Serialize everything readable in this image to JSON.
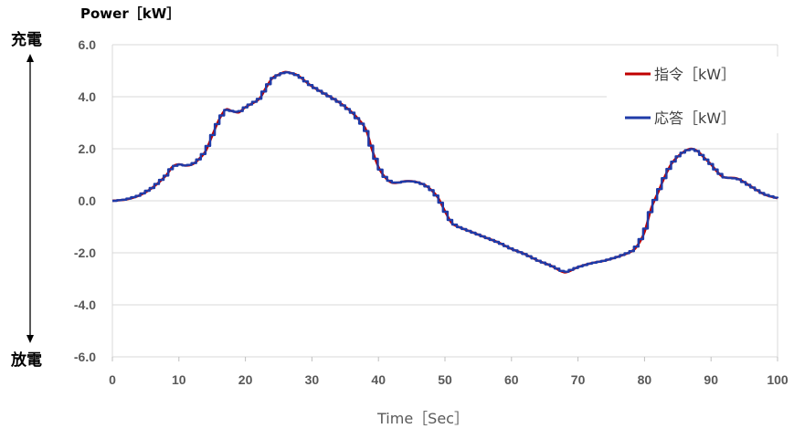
{
  "chart_data": {
    "type": "line",
    "ylabel": "Power［kW］",
    "xlabel": "Time［Sec］",
    "top_label": "充電",
    "bottom_label": "放電",
    "xlim": [
      0,
      100
    ],
    "ylim": [
      -6,
      6
    ],
    "xticks": [
      0,
      10,
      20,
      30,
      40,
      50,
      60,
      70,
      80,
      90,
      100
    ],
    "yticks": [
      6,
      4,
      2,
      0,
      -2,
      -4,
      -6
    ],
    "ytick_labels": [
      "6.0",
      "4.0",
      "2.0",
      "0.0",
      "-2.0",
      "-4.0",
      "-6.0"
    ],
    "xtick_labels": [
      "0",
      "10",
      "20",
      "30",
      "40",
      "50",
      "60",
      "70",
      "80",
      "90",
      "100"
    ],
    "grid": true,
    "legend_position": "top-right",
    "series": [
      {
        "name": "指令［kW］",
        "color": "#C00000",
        "style": "smooth",
        "points": [
          [
            0,
            0.0
          ],
          [
            2,
            0.05
          ],
          [
            4,
            0.2
          ],
          [
            6,
            0.5
          ],
          [
            8,
            0.95
          ],
          [
            9,
            1.3
          ],
          [
            10,
            1.4
          ],
          [
            11,
            1.35
          ],
          [
            12,
            1.4
          ],
          [
            13,
            1.6
          ],
          [
            14,
            1.9
          ],
          [
            15,
            2.5
          ],
          [
            16,
            3.1
          ],
          [
            17,
            3.5
          ],
          [
            18,
            3.45
          ],
          [
            19,
            3.4
          ],
          [
            20,
            3.6
          ],
          [
            22,
            3.9
          ],
          [
            23,
            4.3
          ],
          [
            24,
            4.7
          ],
          [
            25,
            4.85
          ],
          [
            26,
            4.95
          ],
          [
            27,
            4.9
          ],
          [
            28,
            4.8
          ],
          [
            30,
            4.4
          ],
          [
            32,
            4.1
          ],
          [
            34,
            3.8
          ],
          [
            36,
            3.4
          ],
          [
            38,
            2.8
          ],
          [
            39,
            2.0
          ],
          [
            40,
            1.3
          ],
          [
            41,
            0.9
          ],
          [
            42,
            0.7
          ],
          [
            43,
            0.7
          ],
          [
            44,
            0.75
          ],
          [
            45,
            0.75
          ],
          [
            46,
            0.7
          ],
          [
            47,
            0.6
          ],
          [
            48,
            0.4
          ],
          [
            49,
            0.1
          ],
          [
            50,
            -0.4
          ],
          [
            51,
            -0.85
          ],
          [
            52,
            -1.0
          ],
          [
            54,
            -1.2
          ],
          [
            56,
            -1.4
          ],
          [
            58,
            -1.6
          ],
          [
            60,
            -1.85
          ],
          [
            62,
            -2.05
          ],
          [
            64,
            -2.3
          ],
          [
            66,
            -2.5
          ],
          [
            68,
            -2.75
          ],
          [
            70,
            -2.55
          ],
          [
            72,
            -2.4
          ],
          [
            74,
            -2.3
          ],
          [
            76,
            -2.15
          ],
          [
            78,
            -1.95
          ],
          [
            79,
            -1.7
          ],
          [
            80,
            -1.2
          ],
          [
            81,
            -0.3
          ],
          [
            82,
            0.3
          ],
          [
            83,
            0.9
          ],
          [
            84,
            1.4
          ],
          [
            85,
            1.7
          ],
          [
            86,
            1.9
          ],
          [
            87,
            2.0
          ],
          [
            88,
            1.9
          ],
          [
            89,
            1.65
          ],
          [
            90,
            1.4
          ],
          [
            91,
            1.1
          ],
          [
            92,
            0.9
          ],
          [
            94,
            0.85
          ],
          [
            96,
            0.55
          ],
          [
            98,
            0.25
          ],
          [
            100,
            0.1
          ]
        ]
      },
      {
        "name": "応答［kW］",
        "color": "#1F3BA8",
        "style": "step",
        "points": [
          [
            0,
            0.0
          ],
          [
            2,
            0.05
          ],
          [
            4,
            0.2
          ],
          [
            6,
            0.5
          ],
          [
            8,
            0.95
          ],
          [
            9,
            1.3
          ],
          [
            10,
            1.4
          ],
          [
            11,
            1.35
          ],
          [
            12,
            1.4
          ],
          [
            13,
            1.6
          ],
          [
            14,
            1.9
          ],
          [
            15,
            2.5
          ],
          [
            16,
            3.1
          ],
          [
            17,
            3.5
          ],
          [
            18,
            3.45
          ],
          [
            19,
            3.4
          ],
          [
            20,
            3.6
          ],
          [
            22,
            3.9
          ],
          [
            23,
            4.3
          ],
          [
            24,
            4.7
          ],
          [
            25,
            4.85
          ],
          [
            26,
            4.95
          ],
          [
            27,
            4.9
          ],
          [
            28,
            4.8
          ],
          [
            30,
            4.4
          ],
          [
            32,
            4.1
          ],
          [
            34,
            3.8
          ],
          [
            36,
            3.4
          ],
          [
            38,
            2.8
          ],
          [
            39,
            2.0
          ],
          [
            40,
            1.3
          ],
          [
            41,
            0.9
          ],
          [
            42,
            0.7
          ],
          [
            43,
            0.7
          ],
          [
            44,
            0.75
          ],
          [
            45,
            0.75
          ],
          [
            46,
            0.7
          ],
          [
            47,
            0.6
          ],
          [
            48,
            0.4
          ],
          [
            49,
            0.1
          ],
          [
            50,
            -0.4
          ],
          [
            51,
            -0.85
          ],
          [
            52,
            -1.0
          ],
          [
            54,
            -1.2
          ],
          [
            56,
            -1.4
          ],
          [
            58,
            -1.6
          ],
          [
            60,
            -1.85
          ],
          [
            62,
            -2.05
          ],
          [
            64,
            -2.3
          ],
          [
            66,
            -2.5
          ],
          [
            68,
            -2.75
          ],
          [
            70,
            -2.55
          ],
          [
            72,
            -2.4
          ],
          [
            74,
            -2.3
          ],
          [
            76,
            -2.15
          ],
          [
            78,
            -1.95
          ],
          [
            79,
            -1.7
          ],
          [
            80,
            -1.2
          ],
          [
            81,
            -0.3
          ],
          [
            82,
            0.3
          ],
          [
            83,
            0.9
          ],
          [
            84,
            1.4
          ],
          [
            85,
            1.7
          ],
          [
            86,
            1.9
          ],
          [
            87,
            2.0
          ],
          [
            88,
            1.9
          ],
          [
            89,
            1.65
          ],
          [
            90,
            1.4
          ],
          [
            91,
            1.1
          ],
          [
            92,
            0.9
          ],
          [
            94,
            0.85
          ],
          [
            96,
            0.55
          ],
          [
            98,
            0.25
          ],
          [
            100,
            0.1
          ]
        ]
      }
    ]
  }
}
